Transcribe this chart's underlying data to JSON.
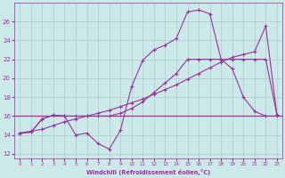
{
  "xlabel": "Windchill (Refroidissement éolien,°C)",
  "background_color": "#cce8e8",
  "grid_color": "#aacccc",
  "line_color": "#993399",
  "xlim": [
    -0.5,
    23.5
  ],
  "ylim": [
    11.5,
    28.0
  ],
  "xticks": [
    0,
    1,
    2,
    3,
    4,
    5,
    6,
    7,
    8,
    9,
    10,
    11,
    12,
    13,
    14,
    15,
    16,
    17,
    18,
    19,
    20,
    21,
    22,
    23
  ],
  "yticks": [
    12,
    14,
    16,
    18,
    20,
    22,
    24,
    26
  ],
  "wavy_x": [
    0,
    1,
    2,
    3,
    4,
    5,
    6,
    7,
    8,
    9,
    10,
    11,
    12,
    13,
    14,
    15,
    16,
    17,
    18,
    19,
    20,
    21,
    22,
    23
  ],
  "wavy_y": [
    14.2,
    14.3,
    15.7,
    16.1,
    16.0,
    14.0,
    14.2,
    13.1,
    12.5,
    14.5,
    19.1,
    21.9,
    23.0,
    23.5,
    24.2,
    27.0,
    27.2,
    26.8,
    22.0,
    21.0,
    18.0,
    16.5,
    16.0,
    16.0
  ],
  "peaked_x": [
    0,
    1,
    2,
    3,
    4,
    5,
    6,
    7,
    8,
    9,
    10,
    11,
    12,
    13,
    14,
    15,
    16,
    17,
    18,
    19,
    20,
    21,
    22,
    23
  ],
  "peaked_y": [
    14.2,
    14.3,
    15.7,
    16.1,
    16.0,
    16.0,
    16.0,
    16.0,
    16.0,
    16.3,
    16.8,
    17.5,
    18.5,
    19.5,
    20.5,
    22.0,
    22.0,
    22.0,
    22.0,
    22.0,
    22.0,
    22.0,
    22.0,
    16.1
  ],
  "diagonal_x": [
    0,
    1,
    2,
    3,
    4,
    5,
    6,
    7,
    8,
    9,
    10,
    11,
    12,
    13,
    14,
    15,
    16,
    17,
    18,
    19,
    20,
    21,
    22,
    23
  ],
  "diagonal_y": [
    14.2,
    14.4,
    14.6,
    15.0,
    15.4,
    15.7,
    16.0,
    16.3,
    16.6,
    17.0,
    17.4,
    17.8,
    18.3,
    18.8,
    19.3,
    19.9,
    20.5,
    21.1,
    21.7,
    22.2,
    22.5,
    22.8,
    25.5,
    16.1
  ],
  "hline_y": 16.0
}
